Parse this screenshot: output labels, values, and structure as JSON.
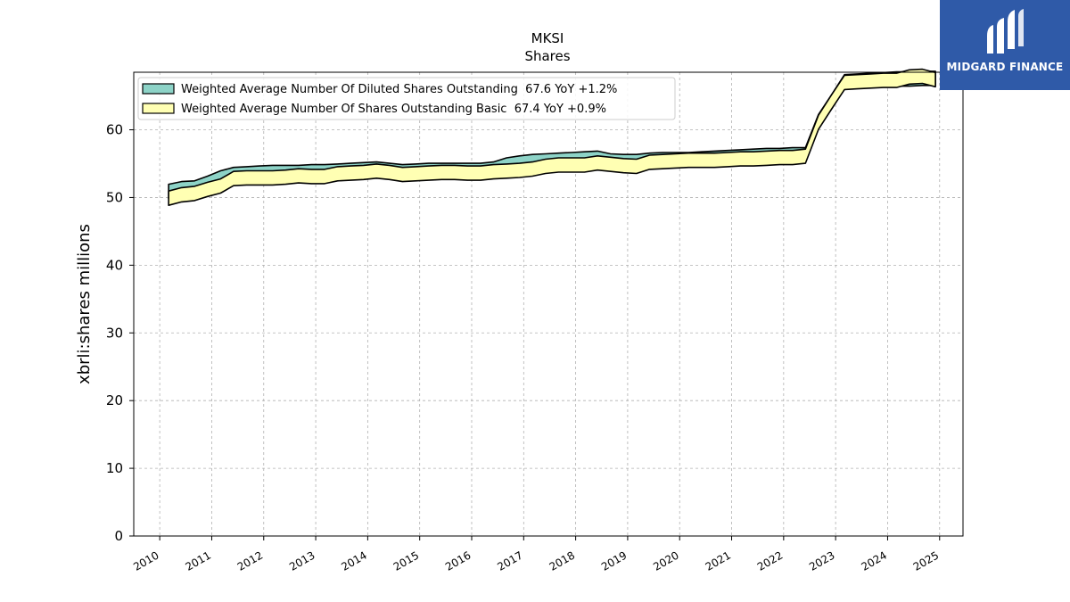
{
  "chart_data": {
    "type": "area",
    "title": "MKSI",
    "subtitle": "Shares",
    "xlabel": "",
    "ylabel": "xbrli:shares millions",
    "xlim": [
      2009.5,
      2025.45
    ],
    "ylim": [
      0,
      68.5
    ],
    "yticks": [
      0,
      10,
      20,
      30,
      40,
      50,
      60
    ],
    "xticks": [
      "2010",
      "2011",
      "2012",
      "2013",
      "2014",
      "2015",
      "2016",
      "2017",
      "2018",
      "2019",
      "2020",
      "2021",
      "2022",
      "2023",
      "2024",
      "2025"
    ],
    "grid": true,
    "legend_position": "top-left",
    "series": [
      {
        "name": "Weighted Average Number Of Diluted Shares Outstanding  67.6 YoY +1.2%",
        "color": "#8dd3c7",
        "x": [
          2010.17,
          2010.42,
          2010.67,
          2010.92,
          2011.17,
          2011.42,
          2011.67,
          2011.92,
          2012.17,
          2012.42,
          2012.67,
          2012.92,
          2013.17,
          2013.42,
          2013.67,
          2013.92,
          2014.17,
          2014.42,
          2014.67,
          2014.92,
          2015.17,
          2015.42,
          2015.67,
          2015.92,
          2016.17,
          2016.42,
          2016.67,
          2016.92,
          2017.17,
          2017.42,
          2017.67,
          2017.92,
          2018.17,
          2018.42,
          2018.67,
          2018.92,
          2019.17,
          2019.42,
          2019.67,
          2019.92,
          2020.17,
          2020.42,
          2020.67,
          2020.92,
          2021.17,
          2021.42,
          2021.67,
          2021.92,
          2022.17,
          2022.42,
          2022.67,
          2022.92,
          2023.17,
          2023.42,
          2023.67,
          2023.92,
          2024.17,
          2024.42,
          2024.67,
          2024.92
        ],
        "values": [
          50.9,
          51.3,
          51.4,
          52.1,
          52.9,
          53.4,
          53.5,
          53.6,
          53.7,
          53.7,
          53.7,
          53.8,
          53.8,
          53.9,
          54.0,
          54.1,
          54.2,
          54.0,
          53.8,
          53.9,
          54.0,
          54.0,
          54.0,
          54.0,
          54.0,
          54.2,
          54.8,
          55.1,
          55.3,
          55.4,
          55.5,
          55.6,
          55.7,
          55.8,
          55.4,
          55.3,
          55.3,
          55.5,
          55.6,
          55.6,
          55.6,
          55.7,
          55.8,
          55.9,
          56.0,
          56.1,
          56.2,
          56.2,
          56.3,
          56.3,
          61.2,
          64.1,
          67.1,
          67.2,
          67.3,
          67.4,
          67.5,
          67.5,
          67.6,
          67.6
        ]
      },
      {
        "name": "Weighted Average Number Of Shares Outstanding Basic  67.4 YoY +0.9%",
        "color": "#ffffb3",
        "x": [
          2010.17,
          2010.42,
          2010.67,
          2010.92,
          2011.17,
          2011.42,
          2011.67,
          2011.92,
          2012.17,
          2012.42,
          2012.67,
          2012.92,
          2013.17,
          2013.42,
          2013.67,
          2013.92,
          2014.17,
          2014.42,
          2014.67,
          2014.92,
          2015.17,
          2015.42,
          2015.67,
          2015.92,
          2016.17,
          2016.42,
          2016.67,
          2016.92,
          2017.17,
          2017.42,
          2017.67,
          2017.92,
          2018.17,
          2018.42,
          2018.67,
          2018.92,
          2019.17,
          2019.42,
          2019.67,
          2019.92,
          2020.17,
          2020.42,
          2020.67,
          2020.92,
          2021.17,
          2021.42,
          2021.67,
          2021.92,
          2022.17,
          2022.42,
          2022.67,
          2022.92,
          2023.17,
          2023.42,
          2023.67,
          2023.92,
          2024.17,
          2024.42,
          2024.67,
          2024.92
        ],
        "values": [
          49.9,
          50.4,
          50.6,
          51.2,
          51.7,
          52.8,
          52.9,
          52.9,
          52.9,
          53.0,
          53.2,
          53.1,
          53.1,
          53.5,
          53.6,
          53.7,
          53.9,
          53.7,
          53.4,
          53.5,
          53.6,
          53.7,
          53.7,
          53.6,
          53.6,
          53.8,
          53.9,
          54.0,
          54.2,
          54.6,
          54.8,
          54.8,
          54.8,
          55.1,
          54.9,
          54.7,
          54.6,
          55.2,
          55.3,
          55.4,
          55.5,
          55.5,
          55.5,
          55.6,
          55.7,
          55.7,
          55.8,
          55.9,
          55.9,
          56.1,
          61.1,
          64.1,
          67.0,
          67.1,
          67.2,
          67.3,
          67.3,
          67.8,
          67.9,
          67.4
        ]
      }
    ]
  },
  "logo": {
    "text": "MIDGARD FINANCE",
    "background": "#2f5aa8"
  }
}
